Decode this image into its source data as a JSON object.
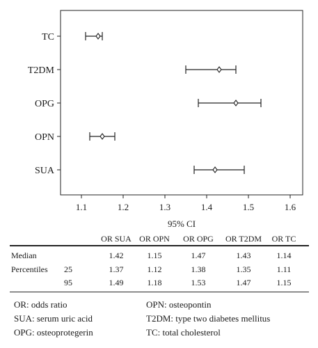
{
  "chart_data": {
    "type": "forest",
    "xlabel": "95% CI",
    "xlim": [
      1.05,
      1.63
    ],
    "xticks": [
      1.1,
      1.2,
      1.3,
      1.4,
      1.5,
      1.6
    ],
    "xtick_labels": [
      "1.1",
      "1.2",
      "1.3",
      "1.4",
      "1.5",
      "1.6"
    ],
    "categories": [
      "TC",
      "T2DM",
      "OPG",
      "OPN",
      "SUA"
    ],
    "median": [
      1.14,
      1.43,
      1.47,
      1.15,
      1.42
    ],
    "lower": [
      1.11,
      1.35,
      1.38,
      1.12,
      1.37
    ],
    "upper": [
      1.15,
      1.47,
      1.53,
      1.18,
      1.49
    ]
  },
  "table": {
    "columns": [
      "OR SUA",
      "OR OPN",
      "OR OPG",
      "OR T2DM",
      "OR TC"
    ],
    "rows": [
      {
        "label": "Median",
        "sub": "",
        "values": [
          "1.42",
          "1.15",
          "1.47",
          "1.43",
          "1.14"
        ]
      },
      {
        "label": "Percentiles",
        "sub": "25",
        "values": [
          "1.37",
          "1.12",
          "1.38",
          "1.35",
          "1.11"
        ]
      },
      {
        "label": "",
        "sub": "95",
        "values": [
          "1.49",
          "1.18",
          "1.53",
          "1.47",
          "1.15"
        ]
      }
    ]
  },
  "legend": {
    "left": [
      "OR: odds ratio",
      "SUA: serum uric acid",
      "OPG: osteoprotegerin"
    ],
    "right": [
      "OPN: osteopontin",
      "T2DM: type two diabetes mellitus",
      "TC: total cholesterol"
    ]
  }
}
